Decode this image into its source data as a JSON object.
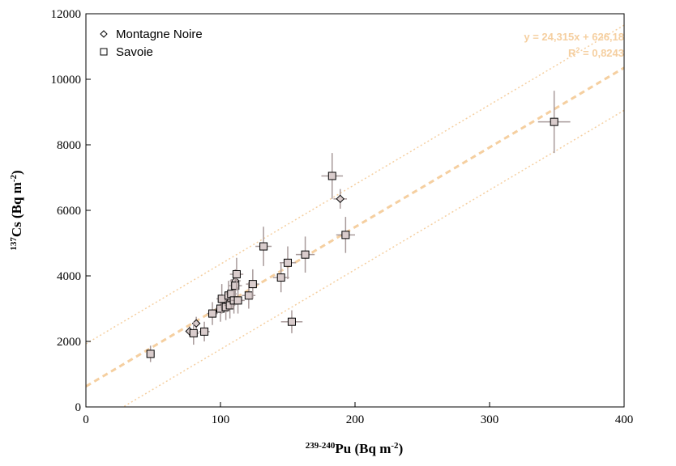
{
  "chart_data": {
    "type": "scatter",
    "xlabel": {
      "sup": "239-240",
      "main": "Pu (Bq m",
      "unit_sup": "-2",
      "close": ")"
    },
    "ylabel": {
      "sup": "137",
      "main": "Cs (Bq m",
      "unit_sup": "-2",
      "close": ")"
    },
    "xlim": [
      0,
      400
    ],
    "ylim": [
      0,
      12000
    ],
    "xticks": [
      0,
      100,
      200,
      300,
      400
    ],
    "yticks": [
      0,
      2000,
      4000,
      6000,
      8000,
      10000,
      12000
    ],
    "grid": false,
    "legend_position": "top-left",
    "series": [
      {
        "name": "Montagne Noire",
        "marker": "diamond",
        "points": [
          {
            "x": 77,
            "y": 2310,
            "xerr": 3,
            "yerr": 150
          },
          {
            "x": 82,
            "y": 2550,
            "xerr": 3,
            "yerr": 200
          },
          {
            "x": 105,
            "y": 3150,
            "xerr": 4,
            "yerr": 250
          },
          {
            "x": 111,
            "y": 3850,
            "xerr": 4,
            "yerr": 300
          },
          {
            "x": 189,
            "y": 6350,
            "xerr": 5,
            "yerr": 300
          }
        ]
      },
      {
        "name": "Savoie",
        "marker": "square",
        "points": [
          {
            "x": 48,
            "y": 1620,
            "xerr": 3,
            "yerr": 250
          },
          {
            "x": 80,
            "y": 2250,
            "xerr": 4,
            "yerr": 350
          },
          {
            "x": 88,
            "y": 2300,
            "xerr": 4,
            "yerr": 300
          },
          {
            "x": 94,
            "y": 2850,
            "xerr": 4,
            "yerr": 350
          },
          {
            "x": 100,
            "y": 3000,
            "xerr": 4,
            "yerr": 400
          },
          {
            "x": 101,
            "y": 3300,
            "xerr": 4,
            "yerr": 450
          },
          {
            "x": 104,
            "y": 3050,
            "xerr": 4,
            "yerr": 400
          },
          {
            "x": 106,
            "y": 3400,
            "xerr": 4,
            "yerr": 450
          },
          {
            "x": 107,
            "y": 3100,
            "xerr": 4,
            "yerr": 400
          },
          {
            "x": 108,
            "y": 3450,
            "xerr": 4,
            "yerr": 450
          },
          {
            "x": 110,
            "y": 3250,
            "xerr": 4,
            "yerr": 400
          },
          {
            "x": 111,
            "y": 3700,
            "xerr": 5,
            "yerr": 500
          },
          {
            "x": 112,
            "y": 4050,
            "xerr": 5,
            "yerr": 500
          },
          {
            "x": 113,
            "y": 3250,
            "xerr": 5,
            "yerr": 400
          },
          {
            "x": 121,
            "y": 3400,
            "xerr": 5,
            "yerr": 400
          },
          {
            "x": 124,
            "y": 3750,
            "xerr": 5,
            "yerr": 450
          },
          {
            "x": 132,
            "y": 4900,
            "xerr": 6,
            "yerr": 600
          },
          {
            "x": 145,
            "y": 3950,
            "xerr": 6,
            "yerr": 450
          },
          {
            "x": 150,
            "y": 4400,
            "xerr": 6,
            "yerr": 500
          },
          {
            "x": 153,
            "y": 2600,
            "xerr": 8,
            "yerr": 350
          },
          {
            "x": 163,
            "y": 4650,
            "xerr": 7,
            "yerr": 550
          },
          {
            "x": 183,
            "y": 7050,
            "xerr": 8,
            "yerr": 700
          },
          {
            "x": 193,
            "y": 5250,
            "xerr": 7,
            "yerr": 550
          },
          {
            "x": 348,
            "y": 8700,
            "xerr": 12,
            "yerr": 950
          }
        ]
      }
    ],
    "regression": {
      "slope": 24.315,
      "intercept": 626.18,
      "band_offset": 1300,
      "equation_label": "y = 24,315x + 626,18",
      "r2_prefix": "R",
      "r2_sup": "2",
      "r2_value": " = 0,8243"
    },
    "colors": {
      "fit_line": "#f5cfa0",
      "error_bars": "#a89a9a",
      "marker_edge": "#000000",
      "marker_fill": "#d9cccc"
    }
  }
}
